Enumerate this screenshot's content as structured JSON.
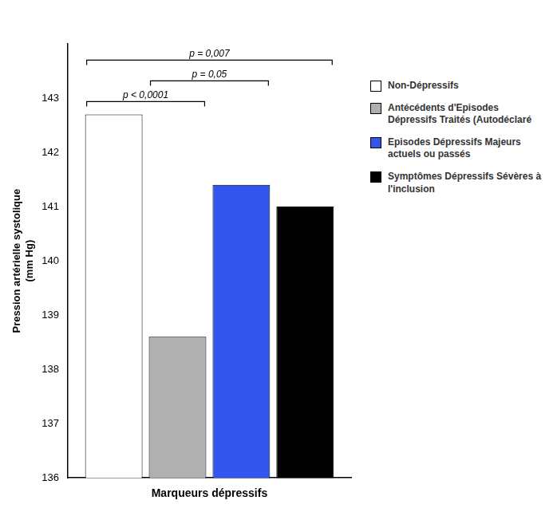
{
  "chart_data": {
    "type": "bar",
    "xlabel": "Marqueurs dépressifs",
    "ylabel": "Pression artérielle systolique\n(mm Hg)",
    "categories": [
      null
    ],
    "series": [
      {
        "name": "Non-Dépressifs",
        "color": "#ffffff",
        "values": [
          142.7
        ]
      },
      {
        "name": "Antécédents d'Episodes\nDépressifs Traités (Autodéclaré",
        "color": "#b0b0b0",
        "values": [
          138.6
        ]
      },
      {
        "name": "Episodes Dépressifs Majeurs\nactuels ou passés",
        "color": "#3355ee",
        "values": [
          141.4
        ]
      },
      {
        "name": "Symptômes Dépressifs Sévères à\nl'inclusion",
        "color": "#000000",
        "values": [
          141.0
        ]
      }
    ],
    "annotations": [
      "p < 0,0001",
      "p = 0,05",
      "p = 0,007"
    ],
    "ylim": [
      136,
      144
    ],
    "yticks": [
      136,
      137,
      138,
      139,
      140,
      141,
      142,
      143
    ],
    "grid": false,
    "legend": "right",
    "tick_labels": "y"
  }
}
